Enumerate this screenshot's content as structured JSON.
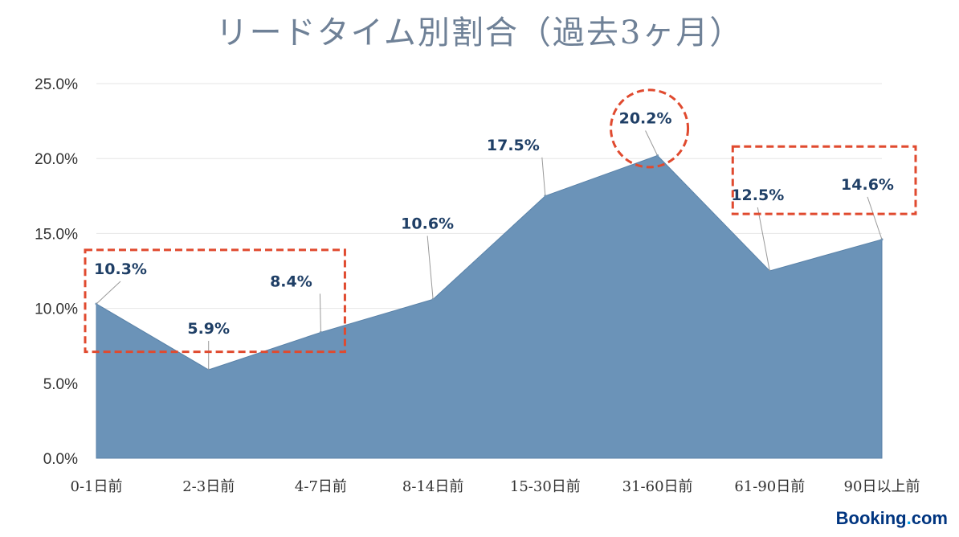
{
  "chart_data": {
    "type": "area",
    "title": "リードタイム別割合（過去3ヶ月）",
    "categories": [
      "0-1日前",
      "2-3日前",
      "4-7日前",
      "8-14日前",
      "15-30日前",
      "31-60日前",
      "61-90日前",
      "90日以上前"
    ],
    "values": [
      10.3,
      5.9,
      8.4,
      10.6,
      17.5,
      20.2,
      12.5,
      14.6
    ],
    "data_labels": [
      "10.3%",
      "5.9%",
      "8.4%",
      "10.6%",
      "17.5%",
      "20.2%",
      "12.5%",
      "14.6%"
    ],
    "ylim": [
      0,
      25
    ],
    "yticks": [
      "0.0%",
      "5.0%",
      "10.0%",
      "15.0%",
      "20.0%",
      "25.0%"
    ],
    "grid": true,
    "colors": {
      "area": "#6b93b8",
      "label": "#1f3f66",
      "highlight": "#e04a2f"
    },
    "highlights": [
      {
        "shape": "rect",
        "categories": [
          "0-1日前",
          "4-7日前"
        ]
      },
      {
        "shape": "circle",
        "categories": [
          "31-60日前"
        ]
      },
      {
        "shape": "rect",
        "categories": [
          "61-90日前",
          "90日以上前"
        ]
      }
    ]
  },
  "brand": {
    "name": "Booking",
    "dot": ".",
    "tld": "com"
  }
}
